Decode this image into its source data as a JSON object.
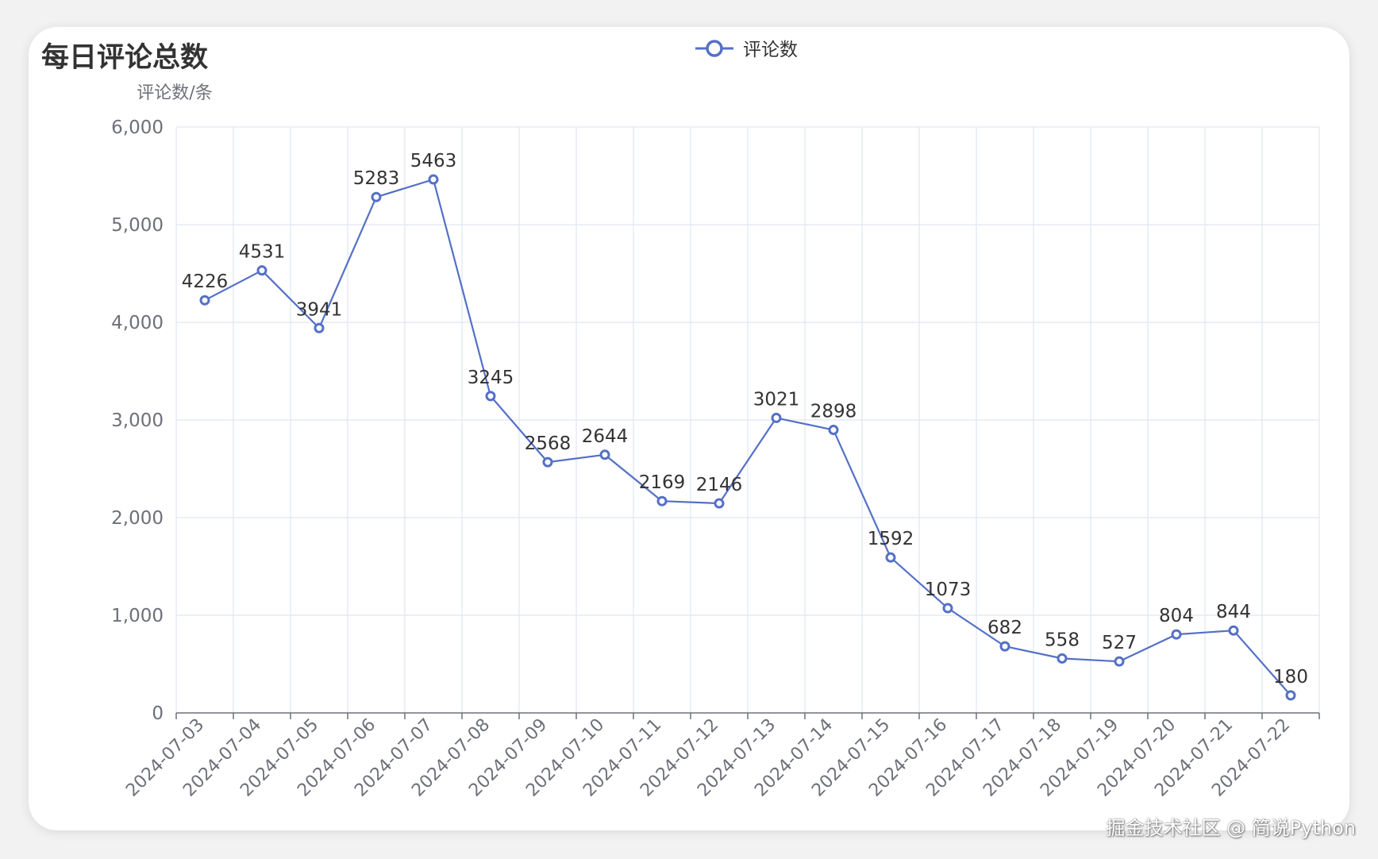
{
  "colors": {
    "series": "#5470c6",
    "grid": "#e0e6f1",
    "axis": "#6e7079",
    "label": "#333333"
  },
  "legend": {
    "icon": "line-circle-icon",
    "placement": "top-center"
  },
  "watermark": "掘金技术社区 @ 简说Python",
  "chart_data": {
    "type": "line",
    "title": "每日评论总数",
    "ylabel": "评论数/条",
    "xlabel": "",
    "ylim": [
      0,
      6000
    ],
    "yticks": [
      "0",
      "1,000",
      "2,000",
      "3,000",
      "4,000",
      "5,000",
      "6,000"
    ],
    "grid": true,
    "legend_position": "top-center",
    "categories": [
      "2024-07-03",
      "2024-07-04",
      "2024-07-05",
      "2024-07-06",
      "2024-07-07",
      "2024-07-08",
      "2024-07-09",
      "2024-07-10",
      "2024-07-11",
      "2024-07-12",
      "2024-07-13",
      "2024-07-14",
      "2024-07-15",
      "2024-07-16",
      "2024-07-17",
      "2024-07-18",
      "2024-07-19",
      "2024-07-20",
      "2024-07-21",
      "2024-07-22"
    ],
    "series": [
      {
        "name": "评论数",
        "values": [
          4226,
          4531,
          3941,
          5283,
          5463,
          3245,
          2568,
          2644,
          2169,
          2146,
          3021,
          2898,
          1592,
          1073,
          682,
          558,
          527,
          804,
          844,
          180
        ]
      }
    ]
  }
}
